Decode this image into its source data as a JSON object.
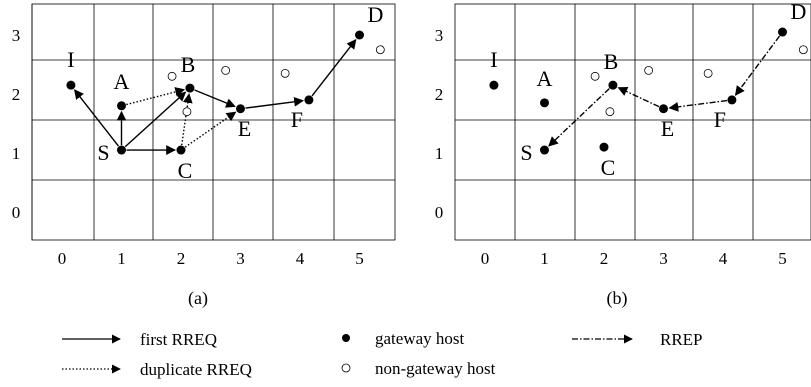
{
  "panels": [
    {
      "id": "a",
      "caption": "(a)",
      "x_ticks": [
        "0",
        "1",
        "2",
        "3",
        "4",
        "5"
      ],
      "y_ticks": [
        "0",
        "1",
        "2",
        "3"
      ],
      "gateway_nodes": [
        {
          "id": "I",
          "label": "I",
          "x": 0.15,
          "y": 2.15
        },
        {
          "id": "A",
          "label": "A",
          "x": 1.0,
          "y": 1.8
        },
        {
          "id": "B",
          "label": "B",
          "x": 2.15,
          "y": 2.1
        },
        {
          "id": "S",
          "label": "S",
          "x": 1.0,
          "y": 1.05
        },
        {
          "id": "C",
          "label": "C",
          "x": 2.0,
          "y": 1.05
        },
        {
          "id": "E",
          "label": "E",
          "x": 3.0,
          "y": 1.75
        },
        {
          "id": "F",
          "label": "F",
          "x": 4.15,
          "y": 1.9
        },
        {
          "id": "D",
          "label": "D",
          "x": 5.0,
          "y": 3.0
        }
      ],
      "non_gateway_nodes": [
        {
          "x": 1.85,
          "y": 2.3
        },
        {
          "x": 2.1,
          "y": 1.7
        },
        {
          "x": 2.75,
          "y": 2.4
        },
        {
          "x": 3.75,
          "y": 2.35
        },
        {
          "x": 5.35,
          "y": 2.75
        }
      ],
      "edges": [
        {
          "from": "S",
          "to": "I",
          "style": "first_rreq"
        },
        {
          "from": "S",
          "to": "A",
          "style": "first_rreq"
        },
        {
          "from": "S",
          "to": "B",
          "style": "first_rreq"
        },
        {
          "from": "S",
          "to": "C",
          "style": "first_rreq"
        },
        {
          "from": "B",
          "to": "E",
          "style": "first_rreq"
        },
        {
          "from": "E",
          "to": "F",
          "style": "first_rreq"
        },
        {
          "from": "F",
          "to": "D",
          "style": "first_rreq"
        },
        {
          "from": "A",
          "to": "B",
          "style": "duplicate_rreq"
        },
        {
          "from": "C",
          "to": "B",
          "style": "duplicate_rreq"
        },
        {
          "from": "C",
          "to": "E",
          "style": "duplicate_rreq"
        }
      ]
    },
    {
      "id": "b",
      "caption": "(b)",
      "x_ticks": [
        "0",
        "1",
        "2",
        "3",
        "4",
        "5"
      ],
      "y_ticks": [
        "0",
        "1",
        "2",
        "3"
      ],
      "gateway_nodes": [
        {
          "id": "I",
          "label": "I",
          "x": 0.15,
          "y": 2.15
        },
        {
          "id": "A",
          "label": "A",
          "x": 1.0,
          "y": 1.85
        },
        {
          "id": "B",
          "label": "B",
          "x": 2.15,
          "y": 2.15
        },
        {
          "id": "S",
          "label": "S",
          "x": 1.0,
          "y": 1.05
        },
        {
          "id": "C",
          "label": "C",
          "x": 2.0,
          "y": 1.1
        },
        {
          "id": "E",
          "label": "E",
          "x": 3.0,
          "y": 1.75
        },
        {
          "id": "F",
          "label": "F",
          "x": 4.15,
          "y": 1.9
        },
        {
          "id": "D",
          "label": "D",
          "x": 5.0,
          "y": 3.05
        }
      ],
      "non_gateway_nodes": [
        {
          "x": 1.85,
          "y": 2.3
        },
        {
          "x": 2.1,
          "y": 1.7
        },
        {
          "x": 2.75,
          "y": 2.4
        },
        {
          "x": 3.75,
          "y": 2.35
        },
        {
          "x": 5.35,
          "y": 2.75
        }
      ],
      "edges": [
        {
          "from": "D",
          "to": "F",
          "style": "rrep"
        },
        {
          "from": "F",
          "to": "E",
          "style": "rrep"
        },
        {
          "from": "E",
          "to": "B",
          "style": "rrep"
        },
        {
          "from": "B",
          "to": "S",
          "style": "rrep"
        }
      ]
    }
  ],
  "legend": {
    "first_rreq": "first RREQ",
    "duplicate_rreq": "duplicate RREQ",
    "gateway": "gateway host",
    "non_gateway": "non-gateway host",
    "rrep": "RREP"
  }
}
